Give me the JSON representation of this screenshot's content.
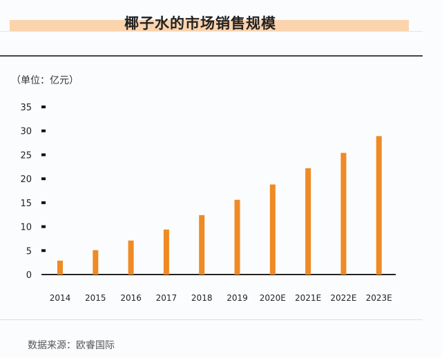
{
  "chart_data": {
    "type": "bar",
    "title": "椰子水的市场销售规模",
    "unit_label": "（单位：亿元）",
    "source": "数据来源：欧睿国际",
    "categories": [
      "2014",
      "2015",
      "2016",
      "2017",
      "2018",
      "2019",
      "2020E",
      "2021E",
      "2022E",
      "2023E"
    ],
    "values": [
      2.9,
      5.1,
      7.1,
      9.4,
      12.4,
      15.6,
      18.8,
      22.2,
      25.4,
      28.9
    ],
    "yticks": [
      "0",
      "5",
      "10",
      "15",
      "20",
      "25",
      "30",
      "35"
    ],
    "ylim": [
      0,
      35
    ],
    "grid": false,
    "colors": {
      "bar": "#ef8a25",
      "title_band": "#fbd3ad"
    }
  }
}
